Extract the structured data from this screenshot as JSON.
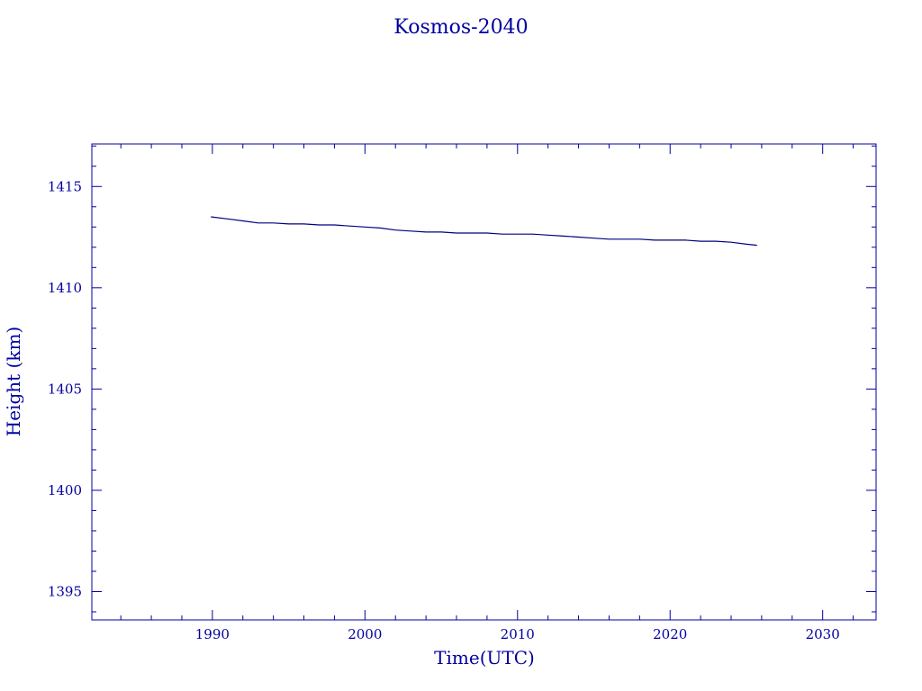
{
  "chart_data": {
    "type": "line",
    "title": "Kosmos-2040",
    "xlabel": "Time(UTC)",
    "ylabel": "Height (km)",
    "xlim": [
      1982.1,
      2033.5
    ],
    "ylim": [
      1393.6,
      1417.1
    ],
    "x_ticks": [
      1990,
      2000,
      2010,
      2020,
      2030
    ],
    "x_minor_step": 2,
    "y_ticks": [
      1395,
      1400,
      1405,
      1410,
      1415
    ],
    "y_minor_step": 1,
    "grid": false,
    "colors": {
      "axes": "#0000a0",
      "line": "#000080"
    },
    "series": [
      {
        "x": [
          1989.9,
          1991,
          1992,
          1993,
          1994,
          1995,
          1996,
          1997,
          1998,
          1999,
          2000,
          2001,
          2002,
          2003,
          2004,
          2005,
          2006,
          2007,
          2008,
          2009,
          2010,
          2011,
          2012,
          2013,
          2014,
          2015,
          2016,
          2017,
          2018,
          2019,
          2020,
          2021,
          2022,
          2023,
          2024,
          2025,
          2025.7
        ],
        "y": [
          1413.5,
          1413.4,
          1413.3,
          1413.2,
          1413.2,
          1413.15,
          1413.15,
          1413.1,
          1413.1,
          1413.05,
          1413.0,
          1412.95,
          1412.85,
          1412.8,
          1412.75,
          1412.75,
          1412.7,
          1412.7,
          1412.7,
          1412.65,
          1412.65,
          1412.65,
          1412.6,
          1412.55,
          1412.5,
          1412.45,
          1412.4,
          1412.4,
          1412.4,
          1412.35,
          1412.35,
          1412.35,
          1412.3,
          1412.3,
          1412.25,
          1412.15,
          1412.1
        ]
      }
    ]
  }
}
